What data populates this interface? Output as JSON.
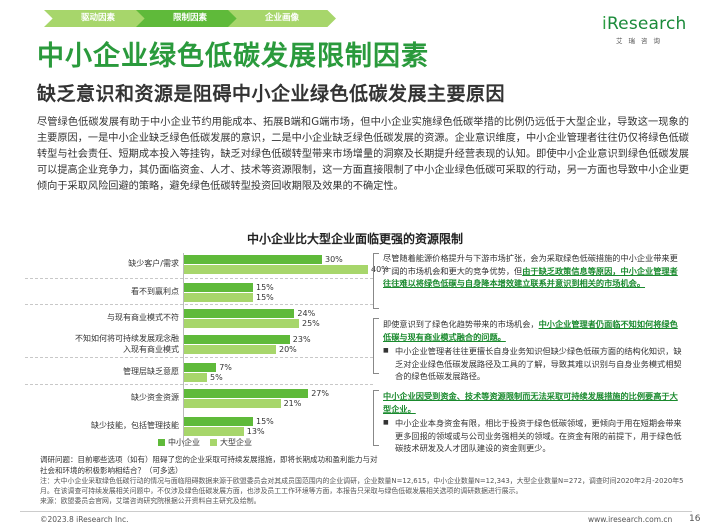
{
  "tabs": [
    "驱动因素",
    "限制因素",
    "企业画像"
  ],
  "logo": {
    "text_i": "i",
    "text_rest": "Research",
    "sub": "艾瑞咨询"
  },
  "title": "中小企业绿色低碳发展限制因素",
  "subtitle": "缺乏意识和资源是阻碍中小企业绿色低碳发展主要原因",
  "intro": "尽管绿色低碳发展有助于中小企业节约用能成本、拓展B端和G端市场，但中小企业实施绿色低碳举措的比例仍远低于大型企业，导致这一现象的主要原因，一是中小企业缺乏绿色低碳发展的意识，二是中小企业缺乏绿色低碳发展的资源。企业意识维度，中小企业管理者往往仍仅将绿色低碳转型与社会责任、短期成本投入等挂钩，缺乏对绿色低碳转型带来市场增量的洞察及长期提升经营表现的认知。即使中小企业意识到绿色低碳发展可以提高企业竞争力，其仍面临资金、人才、技术等资源限制，这一方面直接限制了中小企业绿色低碳可采取的行动，另一方面也导致中小企业更倾向于采取风险回避的策略，避免绿色低碳转型投资回收期限及效果的不确定性。",
  "chart_data": {
    "type": "bar",
    "orientation": "horizontal",
    "title": "中小企业比大型企业面临更强的资源限制",
    "categories": [
      "缺少客户/需求",
      "看不到赢利点",
      "与现有商业模式不符",
      "不知如何将可持续发展观念融入现有商业模式",
      "管理层缺乏意愿",
      "缺少资金资源",
      "缺少技能，包括管理技能"
    ],
    "series": [
      {
        "name": "中小企业",
        "color": "#5fba3a",
        "values": [
          30,
          15,
          24,
          23,
          7,
          27,
          15
        ],
        "labels": [
          "30%",
          "15%",
          "24%",
          "23%",
          "7%",
          "27%",
          "15%"
        ]
      },
      {
        "name": "大型企业",
        "color": "#a7d66b",
        "values": [
          40,
          15,
          25,
          20,
          5,
          21,
          13
        ],
        "labels": [
          "40%",
          "15%",
          "25%",
          "20%",
          "5%",
          "21%",
          "13%"
        ]
      }
    ],
    "xlim": [
      0,
      45
    ]
  },
  "panels": {
    "p1_plain": "尽管随着能源价格提升与下游市场扩张，会为采取绿色低碳措施的中小企业带来更广阔的市场机会和更大的竞争优势，但",
    "p1_hl": "由于缺乏政策信息等原因，中小企业管理者往往难以将绿色低碳与自身降本增效建立联系并意识到相关的市场机会。",
    "p2_plain": "即使意识到了绿色化趋势带来的市场机会，",
    "p2_hl": "中小企业管理者仍面临不知如何将绿色低碳与现有商业模式融合的问题。",
    "p2_bullet": "中小企业管理者往往更擅长自身业务知识但缺少绿色低碳方面的结构化知识，缺乏对企业绿色低碳发展路径及工具的了解，导致其难以识别与自身业务模式相契合的绿色低碳发展路径。",
    "p3_hl": "中小企业因受到资金、技术等资源限制而无法采取可持续发展措施的比例要高于大型企业。",
    "p3_bullet": "中小企业本身资金有限，相比于投资于绿色低碳领域，更倾向于用在短期会带来更多回报的领域或与公司业务强相关的领域。在资金有限的前提下，用于绿色低碳技术研发及人才团队建设的资金则更少。"
  },
  "survey": "调研问题：目前哪些选项（如有）阻碍了您的企业采取可持续发展措施，即将长期成功和盈利能力与对社会和环境的积极影响相结合？（可多选）",
  "note": "注：大中小企业采取绿色低碳行动的情况与面临阻碍数据来源于欧盟委员会对其成员国范围内的企业调研，企业数量N=12,615，中小企业数量N=12,343，大型企业数量N=272，调查时间2020年2月-2020年5月。在该调查可持续发展相关问题中，不仅涉及绿色低碳发展方面，也涉及员工工作环境等方面，本报告只采取与绿色低碳发展相关选项的调研数据进行展示。\n来源：欧盟委员会官网，艾瑞咨询研究院根据公开资料自主研究及绘制。",
  "footer": {
    "left": "©2023.8 iResearch Inc.",
    "right": "www.iresearch.com.cn",
    "page": "16"
  }
}
